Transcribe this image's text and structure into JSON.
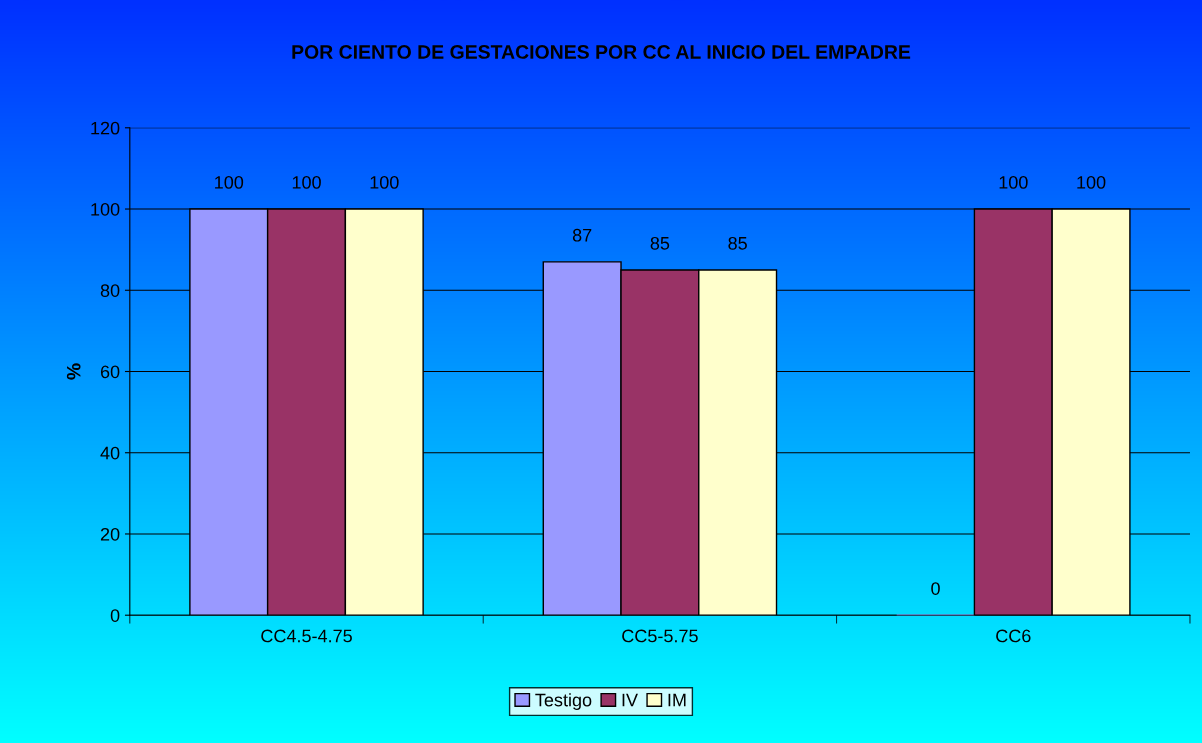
{
  "chart_data": {
    "type": "bar",
    "title": "POR CIENTO DE GESTACIONES POR CC AL INICIO DEL EMPADRE",
    "ylabel": "%",
    "categories": [
      "CC4.5-4.75",
      "CC5-5.75",
      "CC6"
    ],
    "series": [
      {
        "name": "Testigo",
        "color": "#9999ff",
        "values": [
          100,
          87,
          0
        ]
      },
      {
        "name": "IV",
        "color": "#993366",
        "values": [
          100,
          85,
          100
        ]
      },
      {
        "name": "IM",
        "color": "#ffffcc",
        "values": [
          100,
          85,
          100
        ]
      }
    ],
    "ylim": [
      0,
      120
    ],
    "yticks": [
      0,
      20,
      40,
      60,
      80,
      100,
      120
    ],
    "grid": "y",
    "legend": "bottom",
    "data_labels": true
  }
}
